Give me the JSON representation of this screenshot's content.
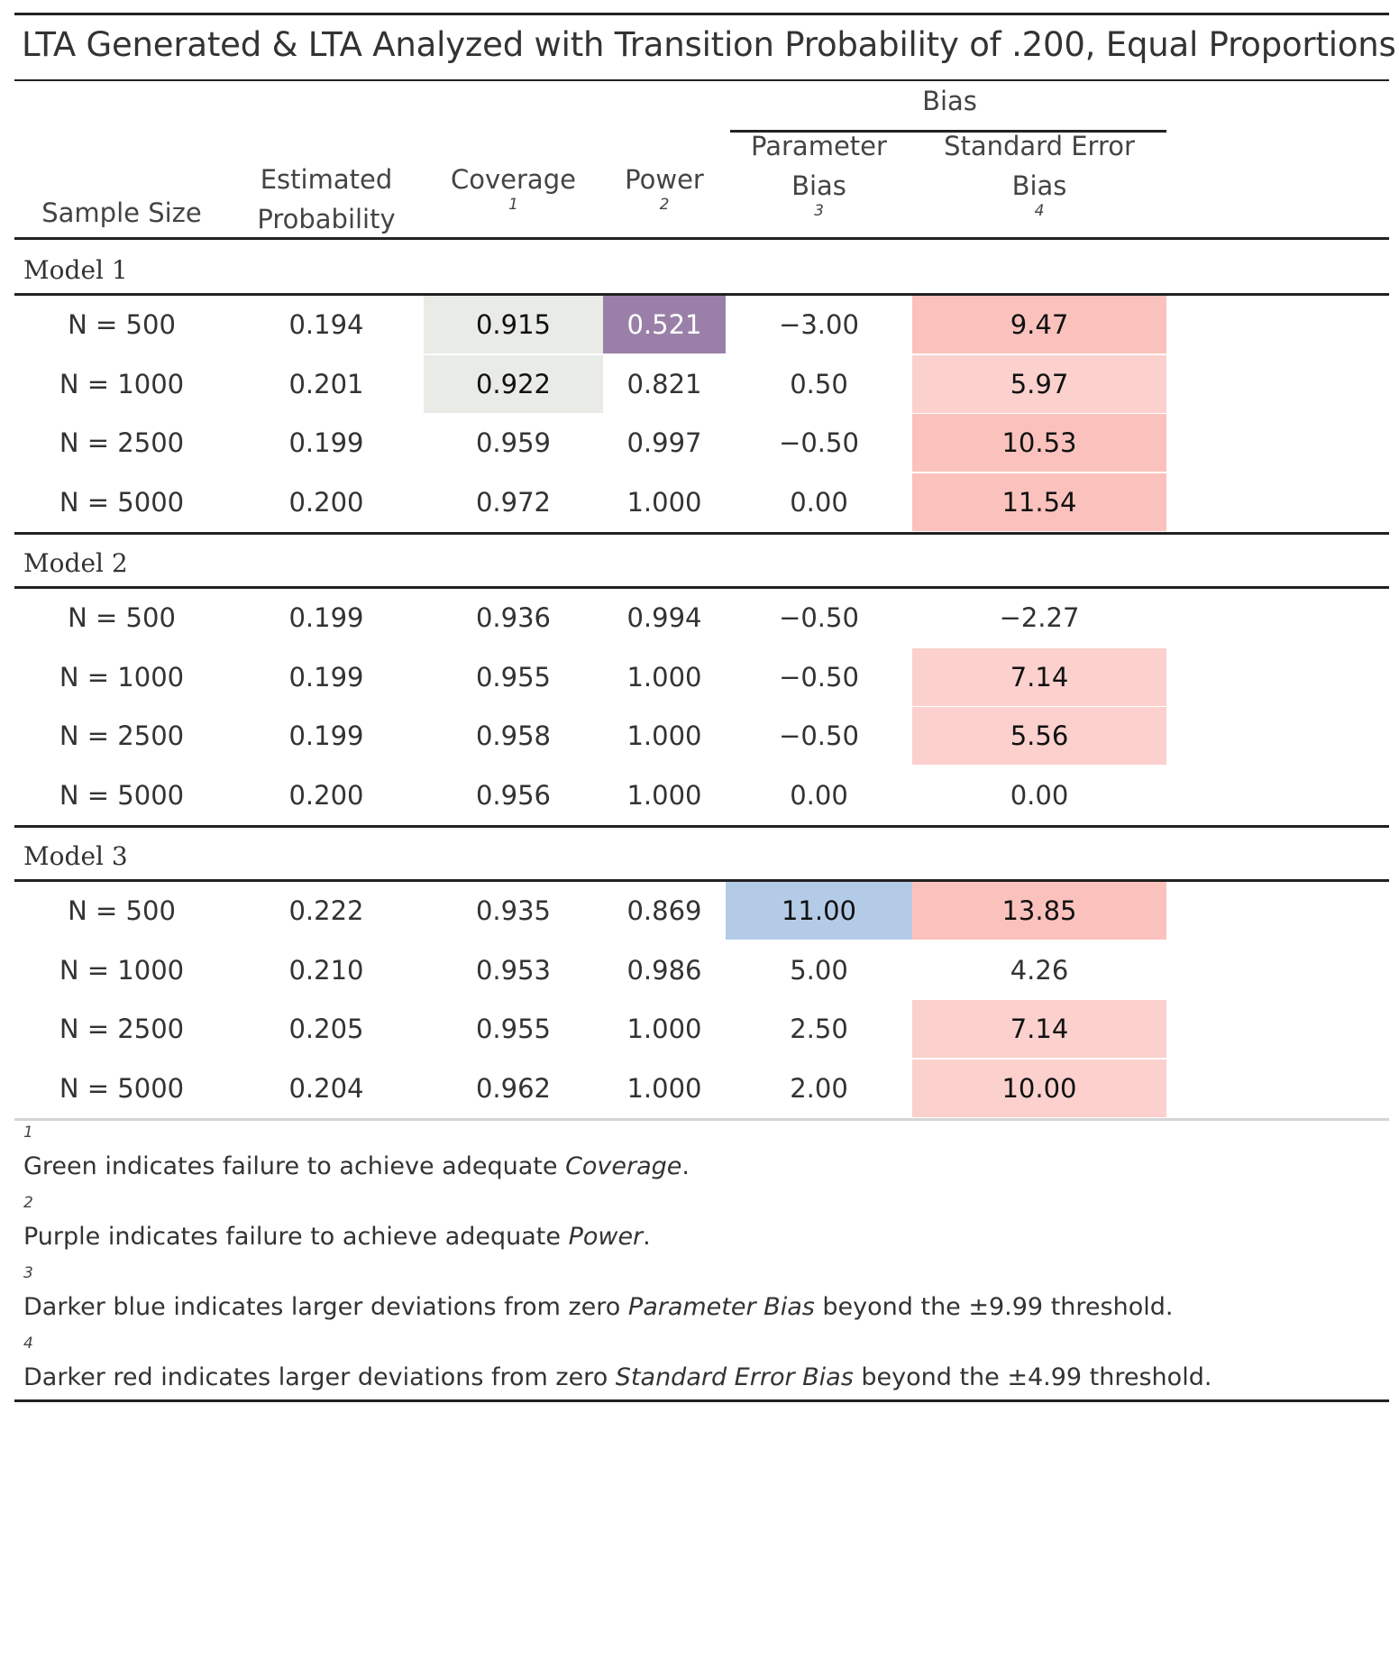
{
  "title": "LTA Generated & LTA Analyzed with Transition Probability of .200, Equal Proportions",
  "header": {
    "spanner": "Bias",
    "columns": [
      {
        "line1": "",
        "line2": "Sample Size",
        "fn": ""
      },
      {
        "line1": "Estimated",
        "line2": "Probability",
        "fn": ""
      },
      {
        "line1": "Coverage",
        "line2": "",
        "fn": "1"
      },
      {
        "line1": "Power",
        "line2": "",
        "fn": "2"
      },
      {
        "line1": "Parameter",
        "line2": "Bias",
        "fn": "3"
      },
      {
        "line1": "Standard Error",
        "line2": "Bias",
        "fn": "4"
      }
    ]
  },
  "colors": {
    "coverage_fail": "#e9ebe6",
    "power_fail": "#9a80a8",
    "param_bias_blue": "#b3cbe6",
    "se_bias_light": "#fbd0cd",
    "se_bias_dark": "#fbc2bd"
  },
  "groups": [
    {
      "label": "Model 1",
      "rows": [
        {
          "n": "N = 500",
          "est": "0.194",
          "cov": "0.915",
          "pow": "0.521",
          "pbias": "−3.00",
          "sebias": "9.47",
          "cov_hl": true,
          "pow_hl": true,
          "pbias_hl": false,
          "se_hl": "dark"
        },
        {
          "n": "N = 1000",
          "est": "0.201",
          "cov": "0.922",
          "pow": "0.821",
          "pbias": "0.50",
          "sebias": "5.97",
          "cov_hl": true,
          "pow_hl": false,
          "pbias_hl": false,
          "se_hl": "light"
        },
        {
          "n": "N = 2500",
          "est": "0.199",
          "cov": "0.959",
          "pow": "0.997",
          "pbias": "−0.50",
          "sebias": "10.53",
          "cov_hl": false,
          "pow_hl": false,
          "pbias_hl": false,
          "se_hl": "dark"
        },
        {
          "n": "N = 5000",
          "est": "0.200",
          "cov": "0.972",
          "pow": "1.000",
          "pbias": "0.00",
          "sebias": "11.54",
          "cov_hl": false,
          "pow_hl": false,
          "pbias_hl": false,
          "se_hl": "dark"
        }
      ]
    },
    {
      "label": "Model 2",
      "rows": [
        {
          "n": "N = 500",
          "est": "0.199",
          "cov": "0.936",
          "pow": "0.994",
          "pbias": "−0.50",
          "sebias": "−2.27",
          "cov_hl": false,
          "pow_hl": false,
          "pbias_hl": false,
          "se_hl": ""
        },
        {
          "n": "N = 1000",
          "est": "0.199",
          "cov": "0.955",
          "pow": "1.000",
          "pbias": "−0.50",
          "sebias": "7.14",
          "cov_hl": false,
          "pow_hl": false,
          "pbias_hl": false,
          "se_hl": "light"
        },
        {
          "n": "N = 2500",
          "est": "0.199",
          "cov": "0.958",
          "pow": "1.000",
          "pbias": "−0.50",
          "sebias": "5.56",
          "cov_hl": false,
          "pow_hl": false,
          "pbias_hl": false,
          "se_hl": "light"
        },
        {
          "n": "N = 5000",
          "est": "0.200",
          "cov": "0.956",
          "pow": "1.000",
          "pbias": "0.00",
          "sebias": "0.00",
          "cov_hl": false,
          "pow_hl": false,
          "pbias_hl": false,
          "se_hl": ""
        }
      ]
    },
    {
      "label": "Model 3",
      "rows": [
        {
          "n": "N = 500",
          "est": "0.222",
          "cov": "0.935",
          "pow": "0.869",
          "pbias": "11.00",
          "sebias": "13.85",
          "cov_hl": false,
          "pow_hl": false,
          "pbias_hl": true,
          "se_hl": "dark"
        },
        {
          "n": "N = 1000",
          "est": "0.210",
          "cov": "0.953",
          "pow": "0.986",
          "pbias": "5.00",
          "sebias": "4.26",
          "cov_hl": false,
          "pow_hl": false,
          "pbias_hl": false,
          "se_hl": ""
        },
        {
          "n": "N = 2500",
          "est": "0.205",
          "cov": "0.955",
          "pow": "1.000",
          "pbias": "2.50",
          "sebias": "7.14",
          "cov_hl": false,
          "pow_hl": false,
          "pbias_hl": false,
          "se_hl": "light"
        },
        {
          "n": "N = 5000",
          "est": "0.204",
          "cov": "0.962",
          "pow": "1.000",
          "pbias": "2.00",
          "sebias": "10.00",
          "cov_hl": false,
          "pow_hl": false,
          "pbias_hl": false,
          "se_hl": "light"
        }
      ]
    }
  ],
  "footnotes": [
    {
      "num": "1",
      "pre": "Green indicates failure to achieve adequate ",
      "em": "Coverage",
      "post": "."
    },
    {
      "num": "2",
      "pre": "Purple indicates failure to achieve adequate ",
      "em": "Power",
      "post": "."
    },
    {
      "num": "3",
      "pre": "Darker blue indicates larger deviations from zero ",
      "em": "Parameter Bias",
      "post": " beyond the ±9.99 threshold."
    },
    {
      "num": "4",
      "pre": "Darker red indicates larger deviations from zero ",
      "em": "Standard Error Bias",
      "post": " beyond the ±4.99 threshold."
    }
  ]
}
